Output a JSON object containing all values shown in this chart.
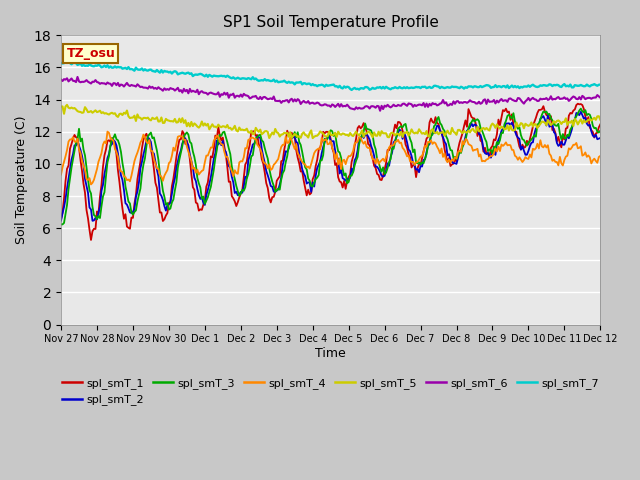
{
  "title": "SP1 Soil Temperature Profile",
  "xlabel": "Time",
  "ylabel": "Soil Temperature (C)",
  "ylim": [
    0,
    18
  ],
  "yticks": [
    0,
    2,
    4,
    6,
    8,
    10,
    12,
    14,
    16,
    18
  ],
  "annotation_text": "TZ_osu",
  "annotation_color": "#cc0000",
  "annotation_bg": "#ffffcc",
  "annotation_border": "#996600",
  "fig_bg": "#c8c8c8",
  "plot_bg": "#e8e8e8",
  "series_colors": {
    "spl_smT_1": "#cc0000",
    "spl_smT_2": "#0000cc",
    "spl_smT_3": "#00aa00",
    "spl_smT_4": "#ff8800",
    "spl_smT_5": "#cccc00",
    "spl_smT_6": "#9900aa",
    "spl_smT_7": "#00cccc"
  },
  "x_tick_labels": [
    "Nov 27",
    "Nov 28",
    "Nov 29",
    "Nov 30",
    "Dec 1",
    "Dec 2",
    "Dec 3",
    "Dec 4",
    "Dec 5",
    "Dec 6",
    "Dec 7",
    "Dec 8",
    "Dec 9",
    "Dec 10",
    "Dec 11",
    "Dec 12"
  ],
  "x_tick_positions": [
    0,
    24,
    48,
    72,
    96,
    120,
    144,
    168,
    192,
    216,
    240,
    264,
    288,
    312,
    336,
    360
  ]
}
